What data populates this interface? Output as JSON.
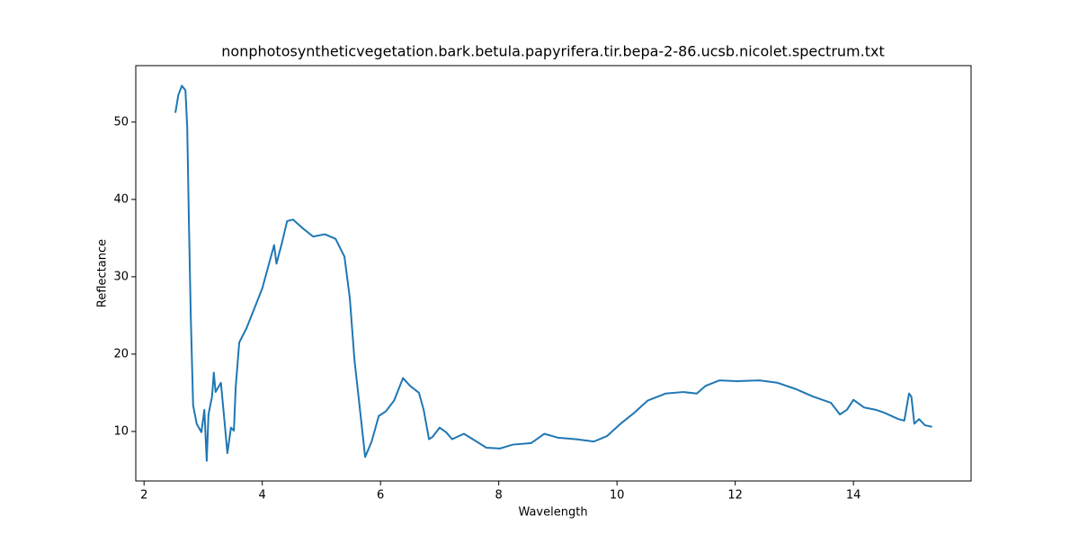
{
  "chart_data": {
    "type": "line",
    "title": "nonphotosyntheticvegetation.bark.betula.papyrifera.tir.bepa-2-86.ucsb.nicolet.spectrum.txt",
    "x_label": "Wavelength",
    "y_label": "Reflectance",
    "xlim": [
      1.86,
      15.99
    ],
    "ylim": [
      3.6,
      57.3
    ],
    "xticks": [
      2,
      4,
      6,
      8,
      10,
      12,
      14
    ],
    "yticks": [
      10,
      20,
      30,
      40,
      50
    ],
    "series": [
      {
        "color": "#1f77b4",
        "x": [
          2.53,
          2.58,
          2.64,
          2.7,
          2.73,
          2.76,
          2.79,
          2.83,
          2.89,
          2.97,
          3.02,
          3.06,
          3.09,
          3.15,
          3.18,
          3.21,
          3.3,
          3.35,
          3.41,
          3.47,
          3.52,
          3.55,
          3.61,
          3.73,
          3.85,
          4.0,
          4.2,
          4.24,
          4.33,
          4.42,
          4.52,
          4.68,
          4.86,
          5.06,
          5.24,
          5.39,
          5.48,
          5.56,
          5.67,
          5.74,
          5.85,
          5.97,
          6.09,
          6.23,
          6.38,
          6.5,
          6.65,
          6.73,
          6.82,
          6.88,
          7.0,
          7.11,
          7.21,
          7.41,
          7.56,
          7.79,
          8.02,
          8.24,
          8.55,
          8.77,
          9.0,
          9.3,
          9.61,
          9.83,
          10.06,
          10.29,
          10.52,
          10.82,
          11.12,
          11.35,
          11.5,
          11.73,
          12.03,
          12.41,
          12.71,
          13.02,
          13.32,
          13.62,
          13.77,
          13.89,
          14.0,
          14.18,
          14.38,
          14.53,
          14.76,
          14.86,
          14.94,
          14.98,
          15.03,
          15.11,
          15.21,
          15.33
        ],
        "values": [
          51.2,
          53.5,
          54.7,
          54.1,
          49.4,
          36.6,
          25,
          13.4,
          11,
          9.9,
          12.8,
          6.2,
          12.2,
          14.5,
          17.6,
          15.1,
          16.3,
          12.2,
          7.2,
          10.5,
          10.1,
          15.7,
          21.5,
          23.3,
          25.6,
          28.5,
          34.1,
          31.7,
          34.3,
          37.2,
          37.4,
          36.3,
          35.2,
          35.5,
          34.9,
          32.6,
          27.3,
          19.2,
          11.6,
          6.7,
          8.7,
          12.0,
          12.6,
          14.0,
          16.9,
          15.9,
          15.0,
          12.8,
          9.0,
          9.3,
          10.5,
          9.9,
          9.0,
          9.7,
          9.0,
          7.9,
          7.8,
          8.3,
          8.5,
          9.7,
          9.2,
          9.0,
          8.7,
          9.4,
          11.0,
          12.4,
          14.0,
          14.9,
          15.1,
          14.9,
          15.9,
          16.6,
          16.5,
          16.6,
          16.3,
          15.5,
          14.5,
          13.7,
          12.2,
          12.8,
          14.1,
          13.1,
          12.8,
          12.4,
          11.6,
          11.4,
          14.9,
          14.5,
          11.0,
          11.6,
          10.8,
          10.6
        ]
      }
    ]
  }
}
